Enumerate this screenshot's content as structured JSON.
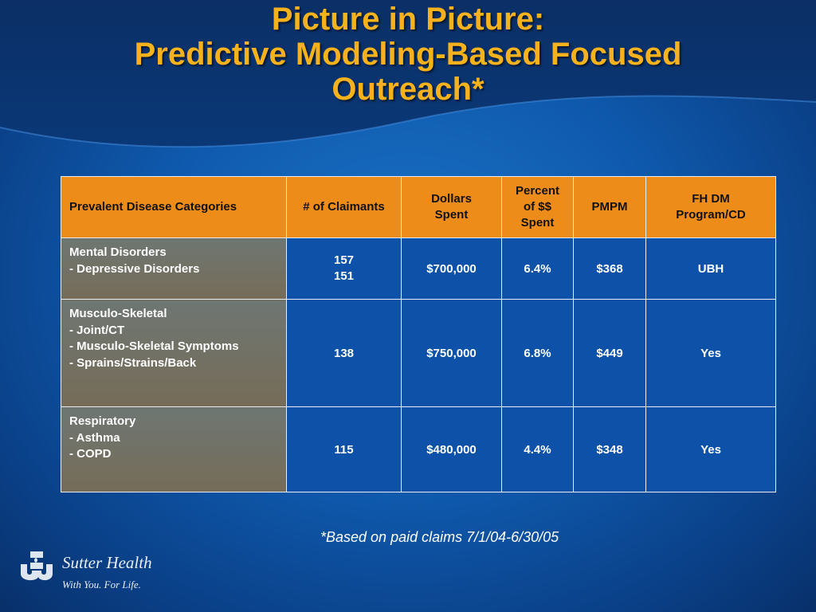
{
  "slide": {
    "title_lines": [
      "Picture in Picture:",
      "Predictive Modeling-Based Focused",
      "Outreach*"
    ],
    "footnote": "*Based on paid claims 7/1/04-6/30/05"
  },
  "table": {
    "headers": {
      "category": "Prevalent Disease Categories",
      "claimants": "# of Claimants",
      "dollars": [
        "Dollars",
        "Spent"
      ],
      "percent": [
        "Percent",
        "of $$",
        "Spent"
      ],
      "pmpm": "PMPM",
      "program": [
        "FH DM",
        "Program/CD"
      ]
    },
    "rows": [
      {
        "category_lines": [
          "Mental Disorders",
          "-  Depressive Disorders"
        ],
        "claimants_lines": [
          "157",
          "151"
        ],
        "dollars": "$700,000",
        "percent": "6.4%",
        "pmpm": "$368",
        "program": "UBH"
      },
      {
        "category_lines": [
          "Musculo-Skeletal",
          "-  Joint/CT",
          "-  Musculo-Skeletal Symptoms",
          "-  Sprains/Strains/Back"
        ],
        "claimants_lines": [
          "138"
        ],
        "dollars": "$750,000",
        "percent": "6.8%",
        "pmpm": "$449",
        "program": "Yes"
      },
      {
        "category_lines": [
          "Respiratory",
          "-  Asthma",
          "-  COPD"
        ],
        "claimants_lines": [
          "115"
        ],
        "dollars": "$480,000",
        "percent": "4.4%",
        "pmpm": "$348",
        "program": "Yes"
      }
    ]
  },
  "branding": {
    "name": "Sutter Health",
    "tagline": "With You. For Life.",
    "icon": "sutter-health-logo-icon"
  },
  "colors": {
    "title": "#f6b21d",
    "header_fill": "#ee8c1a",
    "body_fill": "#0d52a8",
    "category_fill": "#726f62",
    "background": "#0f5aae"
  }
}
